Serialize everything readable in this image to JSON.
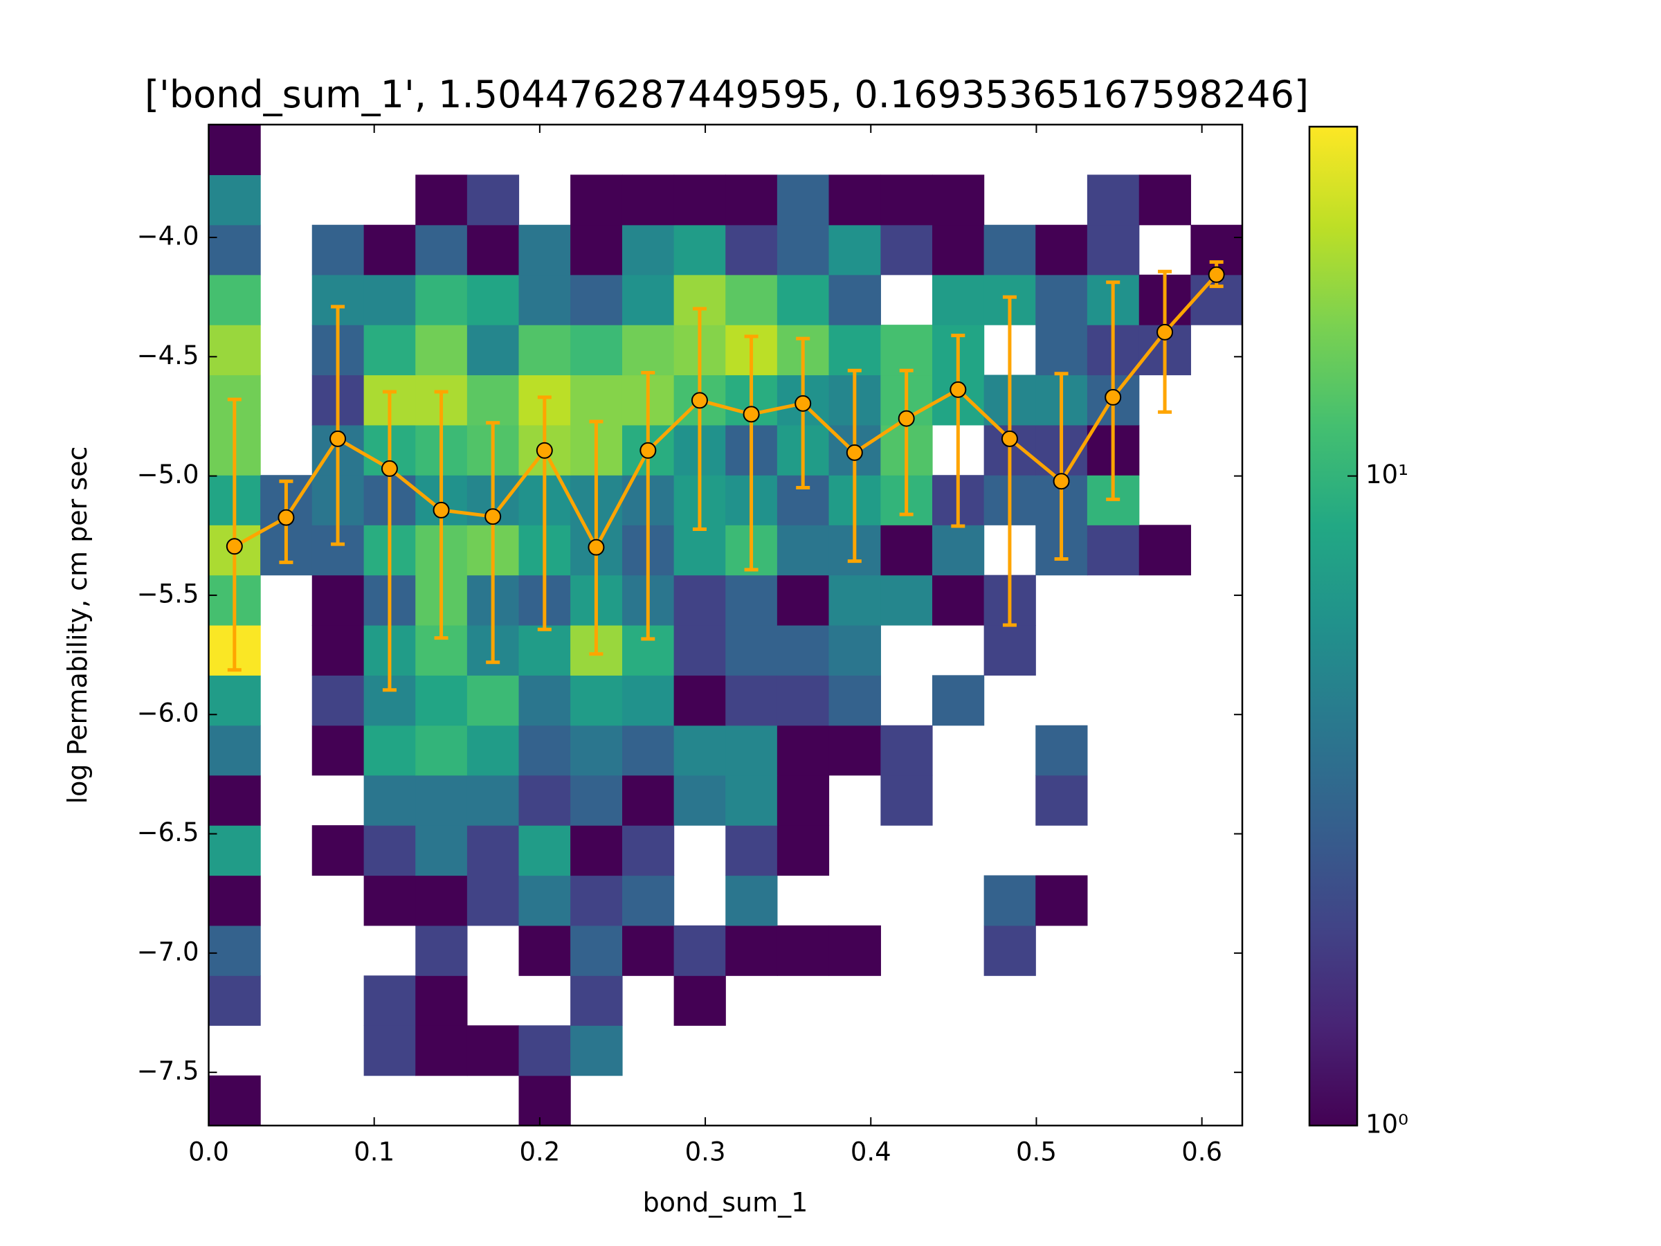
{
  "chart_data": {
    "type": "histogram2d",
    "title": "['bond_sum_1', 1.504476287449595, 0.16935365167598246]",
    "x_label": "bond_sum_1",
    "y_label": "log Permability, cm per sec",
    "xlim": [
      0,
      0.6244
    ],
    "ylim": [
      -7.723,
      -3.527
    ],
    "xticks": [
      {
        "value": 0,
        "label": "0.0"
      },
      {
        "value": 0.1,
        "label": "0.1"
      },
      {
        "value": 0.2,
        "label": "0.2"
      },
      {
        "value": 0.3,
        "label": "0.3"
      },
      {
        "value": 0.4,
        "label": "0.4"
      },
      {
        "value": 0.5,
        "label": "0.5"
      },
      {
        "value": 0.6,
        "label": "0.6"
      }
    ],
    "yticks": [
      {
        "value": -7.5,
        "label": "−7.5"
      },
      {
        "value": -7,
        "label": "−7.0"
      },
      {
        "value": -6.5,
        "label": "−6.5"
      },
      {
        "value": -6,
        "label": "−6.0"
      },
      {
        "value": -5.5,
        "label": "−5.5"
      },
      {
        "value": -5,
        "label": "−5.0"
      },
      {
        "value": -4.5,
        "label": "−4.5"
      },
      {
        "value": -4,
        "label": "−4.0"
      }
    ],
    "x_bins": [
      0,
      0.0312,
      0.0624,
      0.0937,
      0.1249,
      0.1561,
      0.1873,
      0.2185,
      0.2498,
      0.281,
      0.3122,
      0.3434,
      0.3746,
      0.4059,
      0.4371,
      0.4683,
      0.4995,
      0.5307,
      0.562,
      0.5932,
      0.6244
    ],
    "y_bins": [
      -7.723,
      -7.513,
      -7.303,
      -7.094,
      -6.884,
      -6.674,
      -6.464,
      -6.254,
      -6.045,
      -5.835,
      -5.625,
      -5.415,
      -5.205,
      -4.996,
      -4.786,
      -4.576,
      -4.366,
      -4.156,
      -3.947,
      -3.737,
      -3.527
    ],
    "counts": [
      [
        1,
        null,
        null,
        null,
        null,
        null,
        1,
        null,
        null,
        null,
        null,
        null,
        null,
        null,
        null,
        null,
        null,
        null,
        null,
        null
      ],
      [
        null,
        null,
        null,
        2,
        1,
        1,
        2,
        4,
        null,
        null,
        null,
        null,
        null,
        null,
        null,
        null,
        null,
        null,
        null,
        null
      ],
      [
        2,
        null,
        null,
        2,
        1,
        null,
        null,
        2,
        null,
        1,
        null,
        null,
        null,
        null,
        null,
        null,
        null,
        null,
        null,
        null
      ],
      [
        3,
        null,
        null,
        null,
        2,
        null,
        1,
        3,
        1,
        2,
        1,
        1,
        1,
        null,
        null,
        2,
        null,
        null,
        null,
        null
      ],
      [
        1,
        null,
        null,
        1,
        1,
        2,
        4,
        2,
        3,
        null,
        4,
        null,
        null,
        null,
        null,
        3,
        1,
        null,
        null,
        null
      ],
      [
        7,
        null,
        1,
        2,
        4,
        2,
        7,
        1,
        2,
        null,
        2,
        1,
        null,
        null,
        null,
        null,
        null,
        null,
        null,
        null
      ],
      [
        1,
        null,
        null,
        4,
        4,
        4,
        2,
        3,
        1,
        4,
        5,
        1,
        null,
        2,
        null,
        null,
        2,
        null,
        null,
        null
      ],
      [
        4,
        null,
        1,
        8,
        10,
        7,
        3,
        4,
        3,
        5,
        5,
        1,
        1,
        2,
        null,
        null,
        3,
        null,
        null,
        null
      ],
      [
        7,
        null,
        2,
        5,
        8,
        11,
        4,
        7,
        6,
        1,
        2,
        2,
        3,
        null,
        3,
        null,
        null,
        null,
        null,
        null
      ],
      [
        34,
        null,
        1,
        7,
        12,
        5,
        7,
        20,
        9,
        2,
        3,
        3,
        4,
        null,
        null,
        2,
        null,
        null,
        null,
        null
      ],
      [
        12,
        null,
        1,
        3,
        14,
        4,
        3,
        7,
        4,
        2,
        3,
        1,
        5,
        5,
        1,
        2,
        null,
        null,
        null,
        null
      ],
      [
        22,
        3,
        3,
        9,
        14,
        16,
        8,
        5,
        3,
        7,
        11,
        4,
        4,
        1,
        4,
        null,
        3,
        2,
        1,
        null
      ],
      [
        8,
        3,
        4,
        3,
        6,
        5,
        6,
        5,
        4,
        7,
        6,
        3,
        7,
        10,
        2,
        3,
        3,
        10,
        null,
        null
      ],
      [
        16,
        null,
        4,
        9,
        11,
        13,
        20,
        18,
        9,
        6,
        3,
        7,
        4,
        13,
        null,
        2,
        2,
        1,
        null,
        null
      ],
      [
        16,
        null,
        2,
        22,
        22,
        14,
        24,
        18,
        18,
        12,
        9,
        6,
        5,
        12,
        8,
        5,
        5,
        3,
        null,
        null
      ],
      [
        20,
        null,
        3,
        9,
        16,
        5,
        13,
        11,
        16,
        18,
        24,
        15,
        8,
        12,
        8,
        null,
        3,
        2,
        2,
        null
      ],
      [
        12,
        null,
        5,
        5,
        10,
        8,
        4,
        3,
        6,
        20,
        14,
        8,
        3,
        null,
        7,
        7,
        3,
        6,
        1,
        2
      ],
      [
        3,
        null,
        3,
        1,
        3,
        1,
        4,
        1,
        5,
        7,
        2,
        3,
        6,
        2,
        1,
        3,
        1,
        2,
        null,
        1
      ],
      [
        5,
        null,
        null,
        null,
        1,
        2,
        null,
        1,
        1,
        1,
        1,
        3,
        1,
        1,
        1,
        null,
        null,
        2,
        1,
        null
      ],
      [
        1,
        null,
        null,
        null,
        null,
        null,
        null,
        null,
        null,
        null,
        null,
        null,
        null,
        null,
        null,
        null,
        null,
        null,
        null,
        null
      ]
    ],
    "colorscale": "viridis",
    "color_log": true,
    "clim": [
      1,
      34.5
    ],
    "cbar_ticks": [
      {
        "value": 1,
        "label": "10⁰"
      },
      {
        "value": 10,
        "label": "10¹"
      }
    ],
    "series": [
      {
        "type": "errorbar",
        "color": "#ffa500",
        "x": [
          0.0156,
          0.0468,
          0.078,
          0.1093,
          0.1405,
          0.1717,
          0.2029,
          0.2341,
          0.2654,
          0.2966,
          0.3278,
          0.359,
          0.3902,
          0.4215,
          0.4527,
          0.4839,
          0.5151,
          0.5463,
          0.5776,
          0.6088
        ],
        "values": [
          -5.295,
          -5.174,
          -4.844,
          -4.969,
          -5.143,
          -5.17,
          -4.893,
          -5.299,
          -4.893,
          -4.683,
          -4.741,
          -4.696,
          -4.902,
          -4.759,
          -4.638,
          -4.844,
          -5.022,
          -4.67,
          -4.397,
          -4.156
        ],
        "lower": [
          -5.813,
          -5.362,
          -5.286,
          -5.897,
          -5.679,
          -5.781,
          -5.643,
          -5.746,
          -5.683,
          -5.223,
          -5.393,
          -5.049,
          -5.357,
          -5.161,
          -5.21,
          -5.625,
          -5.348,
          -5.098,
          -4.732,
          -4.205
        ],
        "upper": [
          -4.679,
          -5.022,
          -4.29,
          -4.647,
          -4.647,
          -4.777,
          -4.67,
          -4.772,
          -4.567,
          -4.299,
          -4.415,
          -4.424,
          -4.558,
          -4.558,
          -4.411,
          -4.25,
          -4.571,
          -4.188,
          -4.143,
          -4.103
        ]
      }
    ]
  }
}
